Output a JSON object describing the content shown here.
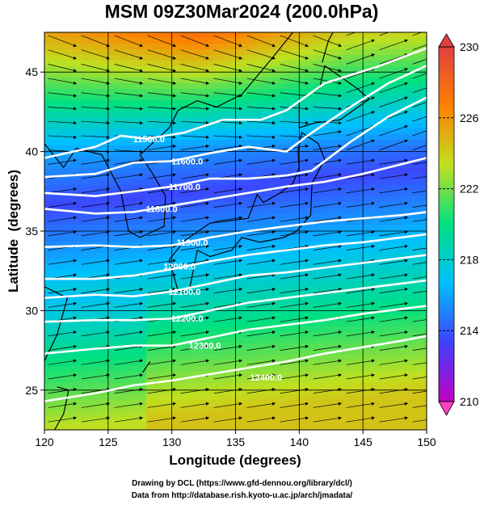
{
  "chart_data": {
    "type": "heatmap",
    "title": "MSM 09Z30Mar2024 (200.0hPa)",
    "xlabel": "Longitude (degrees)",
    "ylabel": "Latitude  (degrees)",
    "xlim": [
      120,
      150
    ],
    "ylim": [
      22.5,
      47.5
    ],
    "x_ticks": [
      "120",
      "125",
      "130",
      "135",
      "140",
      "145",
      "150"
    ],
    "y_ticks": [
      "25",
      "30",
      "35",
      "40",
      "45"
    ],
    "colorbar": {
      "range": [
        210,
        230
      ],
      "ticks": [
        "210",
        "214",
        "218",
        "222",
        "226",
        "230"
      ],
      "colors": [
        "#c000c0",
        "#4040ff",
        "#00c0ff",
        "#00e080",
        "#c0e020",
        "#ff8000",
        "#e04040"
      ]
    },
    "contours": [
      {
        "label": "11500.0",
        "value": 11500,
        "label_lon": 128.2,
        "label_lat": 40.8,
        "path": [
          [
            120,
            39.6
          ],
          [
            124,
            40.3
          ],
          [
            126,
            41.0
          ],
          [
            128,
            40.8
          ],
          [
            131,
            41.2
          ],
          [
            134,
            42.0
          ],
          [
            137,
            42.0
          ],
          [
            139,
            42.6
          ],
          [
            142,
            44.3
          ],
          [
            146,
            45.3
          ],
          [
            150,
            46.5
          ]
        ]
      },
      {
        "label": "11600.0",
        "value": 11600,
        "label_lon": 131.2,
        "label_lat": 39.4,
        "path": [
          [
            120,
            38.4
          ],
          [
            124,
            38.6
          ],
          [
            127,
            39.3
          ],
          [
            130,
            39.4
          ],
          [
            133,
            39.9
          ],
          [
            136,
            40.3
          ],
          [
            139,
            40.0
          ],
          [
            141,
            41.2
          ],
          [
            144,
            42.8
          ],
          [
            147,
            44.3
          ],
          [
            150,
            45.4
          ]
        ]
      },
      {
        "label": "11700.0",
        "value": 11700,
        "label_lon": 131.0,
        "label_lat": 37.8,
        "path": [
          [
            120,
            37.4
          ],
          [
            124,
            37.2
          ],
          [
            127,
            37.5
          ],
          [
            130,
            37.8
          ],
          [
            133,
            38.3
          ],
          [
            136,
            38.3
          ],
          [
            139,
            38.5
          ],
          [
            141,
            38.8
          ],
          [
            144,
            40.6
          ],
          [
            147,
            42.2
          ],
          [
            150,
            43.4
          ]
        ]
      },
      {
        "label": "11800.0",
        "value": 11800,
        "label_lon": 129.2,
        "label_lat": 36.4,
        "path": [
          [
            120,
            36.4
          ],
          [
            124,
            36.1
          ],
          [
            127,
            36.2
          ],
          [
            130,
            36.6
          ],
          [
            133,
            37.0
          ],
          [
            136,
            37.4
          ],
          [
            139,
            37.8
          ],
          [
            142,
            38.1
          ],
          [
            145,
            38.6
          ],
          [
            148,
            39.2
          ],
          [
            150,
            39.6
          ]
        ]
      },
      {
        "label": "11900.0",
        "value": 11900,
        "label_lon": 131.6,
        "label_lat": 34.3,
        "path": [
          [
            120,
            34.0
          ],
          [
            124,
            34.1
          ],
          [
            127,
            34.0
          ],
          [
            130,
            34.1
          ],
          [
            133,
            34.6
          ],
          [
            136,
            35.0
          ],
          [
            139,
            35.3
          ],
          [
            142,
            35.6
          ],
          [
            145,
            35.8
          ],
          [
            148,
            36.0
          ],
          [
            150,
            36.2
          ]
        ]
      },
      {
        "label": "12000.0",
        "value": 12000,
        "label_lon": 130.6,
        "label_lat": 32.8,
        "path": [
          [
            120,
            32.0
          ],
          [
            124,
            32.0
          ],
          [
            127,
            32.2
          ],
          [
            130,
            32.6
          ],
          [
            133,
            33.1
          ],
          [
            136,
            33.5
          ],
          [
            139,
            33.8
          ],
          [
            142,
            34.1
          ],
          [
            145,
            34.3
          ],
          [
            148,
            34.6
          ],
          [
            150,
            34.8
          ]
        ]
      },
      {
        "label": "12100.0",
        "value": 12100,
        "label_lon": 131.0,
        "label_lat": 31.2,
        "path": [
          [
            120,
            30.8
          ],
          [
            124,
            31.0
          ],
          [
            127,
            30.9
          ],
          [
            130,
            31.2
          ],
          [
            133,
            31.7
          ],
          [
            136,
            32.2
          ],
          [
            139,
            32.4
          ],
          [
            142,
            32.7
          ],
          [
            145,
            33.0
          ],
          [
            148,
            33.3
          ],
          [
            150,
            33.5
          ]
        ]
      },
      {
        "label": "12200.0",
        "value": 12200,
        "label_lon": 131.2,
        "label_lat": 29.5,
        "path": [
          [
            120,
            29.3
          ],
          [
            124,
            29.4
          ],
          [
            127,
            29.4
          ],
          [
            130,
            29.5
          ],
          [
            133,
            30.0
          ],
          [
            136,
            30.5
          ],
          [
            139,
            30.8
          ],
          [
            142,
            31.1
          ],
          [
            145,
            31.4
          ],
          [
            148,
            31.7
          ],
          [
            150,
            31.9
          ]
        ]
      },
      {
        "label": "12300.0",
        "value": 12300,
        "label_lon": 132.6,
        "label_lat": 27.8,
        "path": [
          [
            120,
            27.3
          ],
          [
            124,
            27.6
          ],
          [
            127,
            27.8
          ],
          [
            130,
            27.8
          ],
          [
            133,
            28.3
          ],
          [
            136,
            28.8
          ],
          [
            139,
            29.1
          ],
          [
            142,
            29.4
          ],
          [
            145,
            29.8
          ],
          [
            148,
            30.1
          ],
          [
            150,
            30.3
          ]
        ]
      },
      {
        "label": "12400.0",
        "value": 12400,
        "label_lon": 137.4,
        "label_lat": 25.8,
        "path": [
          [
            120,
            24.3
          ],
          [
            124,
            24.8
          ],
          [
            127,
            25.3
          ],
          [
            130,
            25.6
          ],
          [
            133,
            26.0
          ],
          [
            136,
            26.4
          ],
          [
            139,
            26.8
          ],
          [
            142,
            27.3
          ],
          [
            145,
            27.7
          ],
          [
            148,
            28.1
          ],
          [
            150,
            28.4
          ]
        ]
      }
    ]
  },
  "credits": {
    "line1": "Drawing by DCL (https://www.gfd-dennou.org/library/dcl/)",
    "line2": "Data from http://database.rish.kyoto-u.ac.jp/arch/jmadata/"
  }
}
